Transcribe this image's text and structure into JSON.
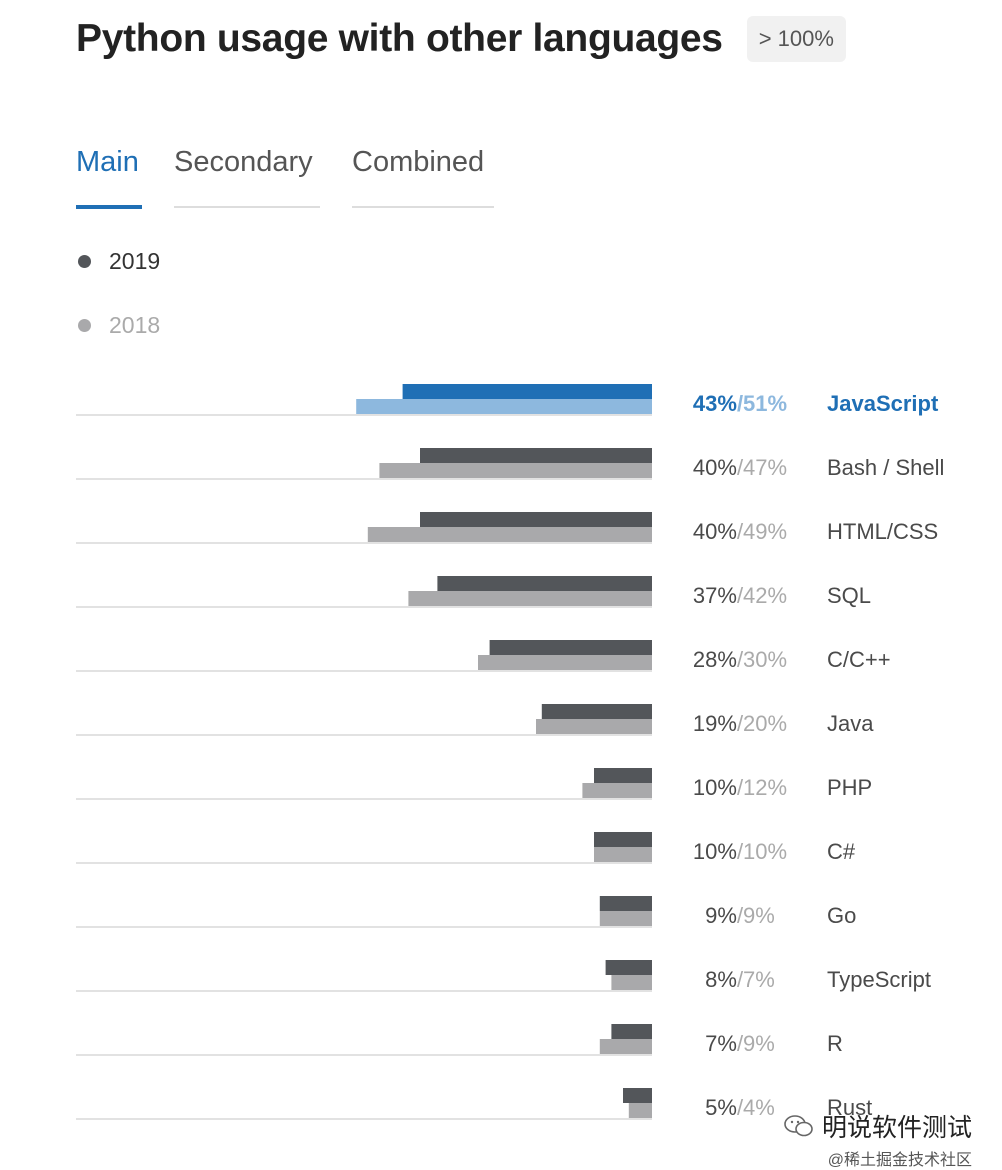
{
  "header": {
    "title": "Python usage with other languages",
    "badge": "> 100%"
  },
  "tabs": [
    {
      "label": "Main",
      "active": true
    },
    {
      "label": "Secondary",
      "active": false
    },
    {
      "label": "Combined",
      "active": false
    }
  ],
  "legend": [
    {
      "label": "2019",
      "color": "#53565a"
    },
    {
      "label": "2018",
      "color": "#a9a9ab"
    }
  ],
  "colors": {
    "accent": "#1f6fb5",
    "accent_light": "#8db8de",
    "bar_2019": "#53565a",
    "bar_2018": "#a9a9ab",
    "baseline": "#d9d9d9"
  },
  "chart_data": {
    "type": "bar",
    "orientation": "horizontal",
    "title": "Python usage with other languages",
    "value_unit": "%",
    "xlim": [
      0,
      100
    ],
    "highlight_category": "JavaScript",
    "categories": [
      "JavaScript",
      "Bash / Shell",
      "HTML/CSS",
      "SQL",
      "C/C++",
      "Java",
      "PHP",
      "C#",
      "Go",
      "TypeScript",
      "R",
      "Rust"
    ],
    "series": [
      {
        "name": "2019",
        "values": [
          43,
          40,
          40,
          37,
          28,
          19,
          10,
          10,
          9,
          8,
          7,
          5
        ]
      },
      {
        "name": "2018",
        "values": [
          51,
          47,
          49,
          42,
          30,
          20,
          12,
          10,
          9,
          7,
          9,
          4
        ]
      }
    ]
  },
  "watermark": {
    "main": "明说软件测试",
    "sub": "@稀土掘金技术社区",
    "icon": "wechat-icon"
  }
}
